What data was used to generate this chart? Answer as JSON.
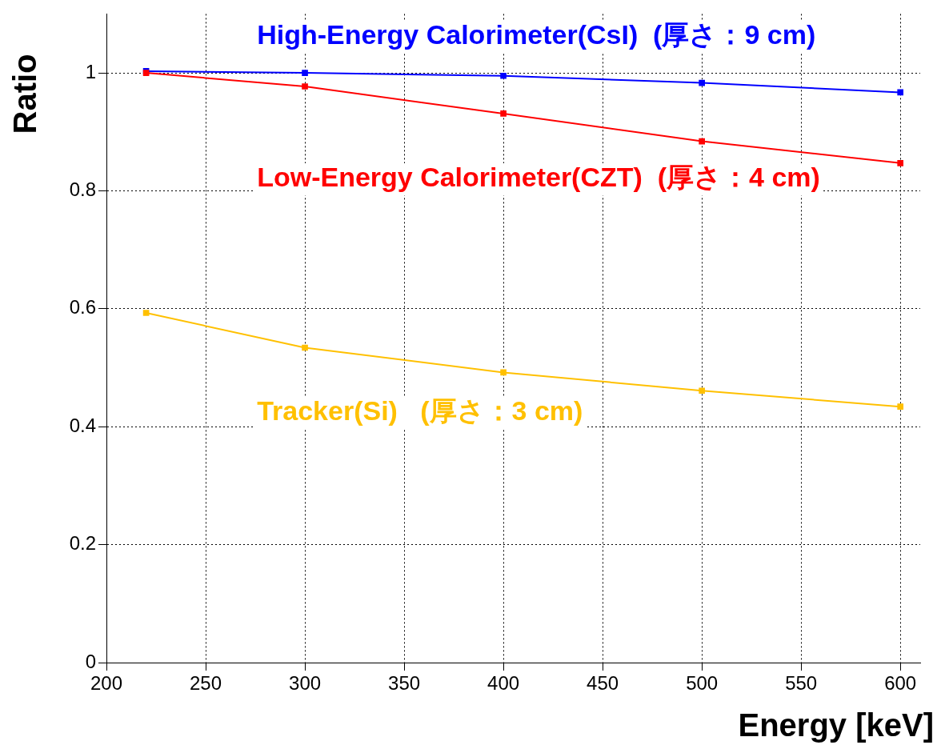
{
  "chart_data": {
    "type": "line",
    "xlabel": "Energy [keV]",
    "ylabel": "Ratio",
    "x": [
      220,
      300,
      400,
      500,
      600
    ],
    "series": [
      {
        "name": "High-Energy Calorimeter(CsI)  (厚さ：9 cm)",
        "color": "#0000ff",
        "values": [
          1.003,
          1.0,
          0.995,
          0.983,
          0.967
        ]
      },
      {
        "name": "Low-Energy Calorimeter(CZT)  (厚さ：4 cm)",
        "color": "#ff0000",
        "values": [
          1.0,
          0.977,
          0.931,
          0.884,
          0.847
        ]
      },
      {
        "name": "Tracker(Si)   (厚さ：3 cm)",
        "color": "#ffc000",
        "values": [
          0.593,
          0.534,
          0.492,
          0.461,
          0.434
        ]
      }
    ],
    "xlim": [
      200,
      610
    ],
    "xticks": [
      200,
      250,
      300,
      350,
      400,
      450,
      500,
      550,
      600
    ],
    "ylim": [
      0,
      1.1
    ],
    "yticks": [
      0,
      0.2,
      0.4,
      0.6,
      0.8,
      1
    ],
    "grid": true,
    "legend": false,
    "marker": "square",
    "line_style": "solid"
  }
}
